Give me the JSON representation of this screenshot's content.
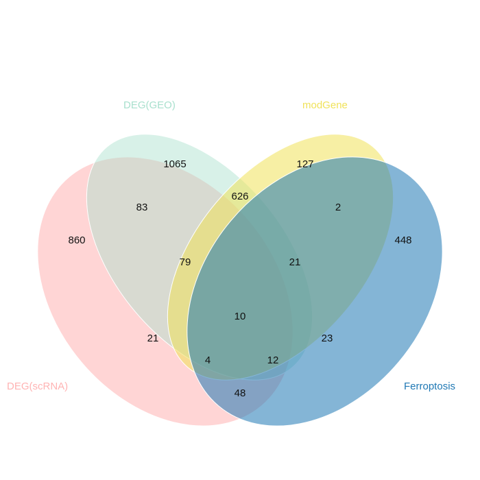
{
  "sets": [
    {
      "key": "scrna",
      "name": "DEG(scRNA)",
      "color": "#FFB3B3"
    },
    {
      "key": "geo",
      "name": "DEG(GEO)",
      "color": "#A8E0CD"
    },
    {
      "key": "mod",
      "name": "modGene",
      "color": "#F0E25A"
    },
    {
      "key": "ferro",
      "name": "Ferroptosis",
      "color": "#1F78B4"
    }
  ],
  "regions": {
    "scrna_only": "860",
    "geo_only": "1065",
    "mod_only": "127",
    "ferro_only": "448",
    "scrna_geo": "83",
    "geo_mod": "626",
    "mod_ferro": "2",
    "scrna_geo_mod": "79",
    "geo_mod_ferro": "21",
    "all_four": "10",
    "scrna_mod": "21",
    "geo_ferro": "23",
    "scrna_mod_ferro": "4",
    "scrna_geo_ferro": "12",
    "scrna_ferro": "48"
  }
}
